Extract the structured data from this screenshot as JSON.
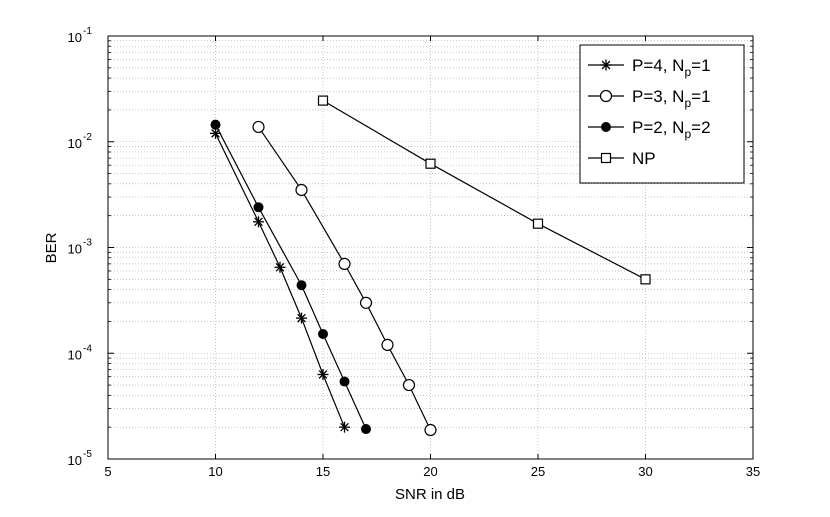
{
  "chart_data": {
    "type": "line",
    "xlabel": "SNR in dB",
    "ylabel": "BER",
    "xlim": [
      5,
      35
    ],
    "ylim": [
      1e-05,
      0.1
    ],
    "yscale": "log",
    "grid": true,
    "legend_position": "top-right",
    "x_ticks": [
      "5",
      "10",
      "15",
      "20",
      "25",
      "30",
      "35"
    ],
    "y_ticks": [
      {
        "base": "10",
        "exp": "-5"
      },
      {
        "base": "10",
        "exp": "-4"
      },
      {
        "base": "10",
        "exp": "-3"
      },
      {
        "base": "10",
        "exp": "-2"
      },
      {
        "base": "10",
        "exp": "-1"
      }
    ],
    "series": [
      {
        "key": "p4",
        "legend": {
          "main": "P=4, N",
          "sub": "p",
          "tail": "=1"
        },
        "marker": "star",
        "x": [
          10,
          12,
          13,
          14,
          15,
          16
        ],
        "y": [
          0.012,
          0.00175,
          0.00065,
          0.000215,
          6.3e-05,
          2e-05
        ]
      },
      {
        "key": "p3",
        "legend": {
          "main": "P=3, N",
          "sub": "p",
          "tail": "=1"
        },
        "marker": "open-circle",
        "x": [
          12,
          14,
          16,
          17,
          18,
          19,
          20
        ],
        "y": [
          0.0138,
          0.0035,
          0.0007,
          0.0003,
          0.00012,
          5e-05,
          1.88e-05
        ]
      },
      {
        "key": "p2",
        "legend": {
          "main": "P=2, N",
          "sub": "p",
          "tail": "=2"
        },
        "marker": "filled-circle",
        "x": [
          10,
          12,
          14,
          15,
          16,
          17
        ],
        "y": [
          0.0145,
          0.0024,
          0.00044,
          0.000152,
          5.4e-05,
          1.92e-05
        ]
      },
      {
        "key": "np",
        "legend": {
          "main": "NP",
          "sub": "",
          "tail": ""
        },
        "marker": "open-square",
        "x": [
          15,
          20,
          25,
          30
        ],
        "y": [
          0.0245,
          0.0062,
          0.00168,
          0.0005
        ]
      }
    ]
  },
  "colors": {
    "line": "#000000",
    "grid": "#a0a0a0",
    "background": "#ffffff"
  }
}
